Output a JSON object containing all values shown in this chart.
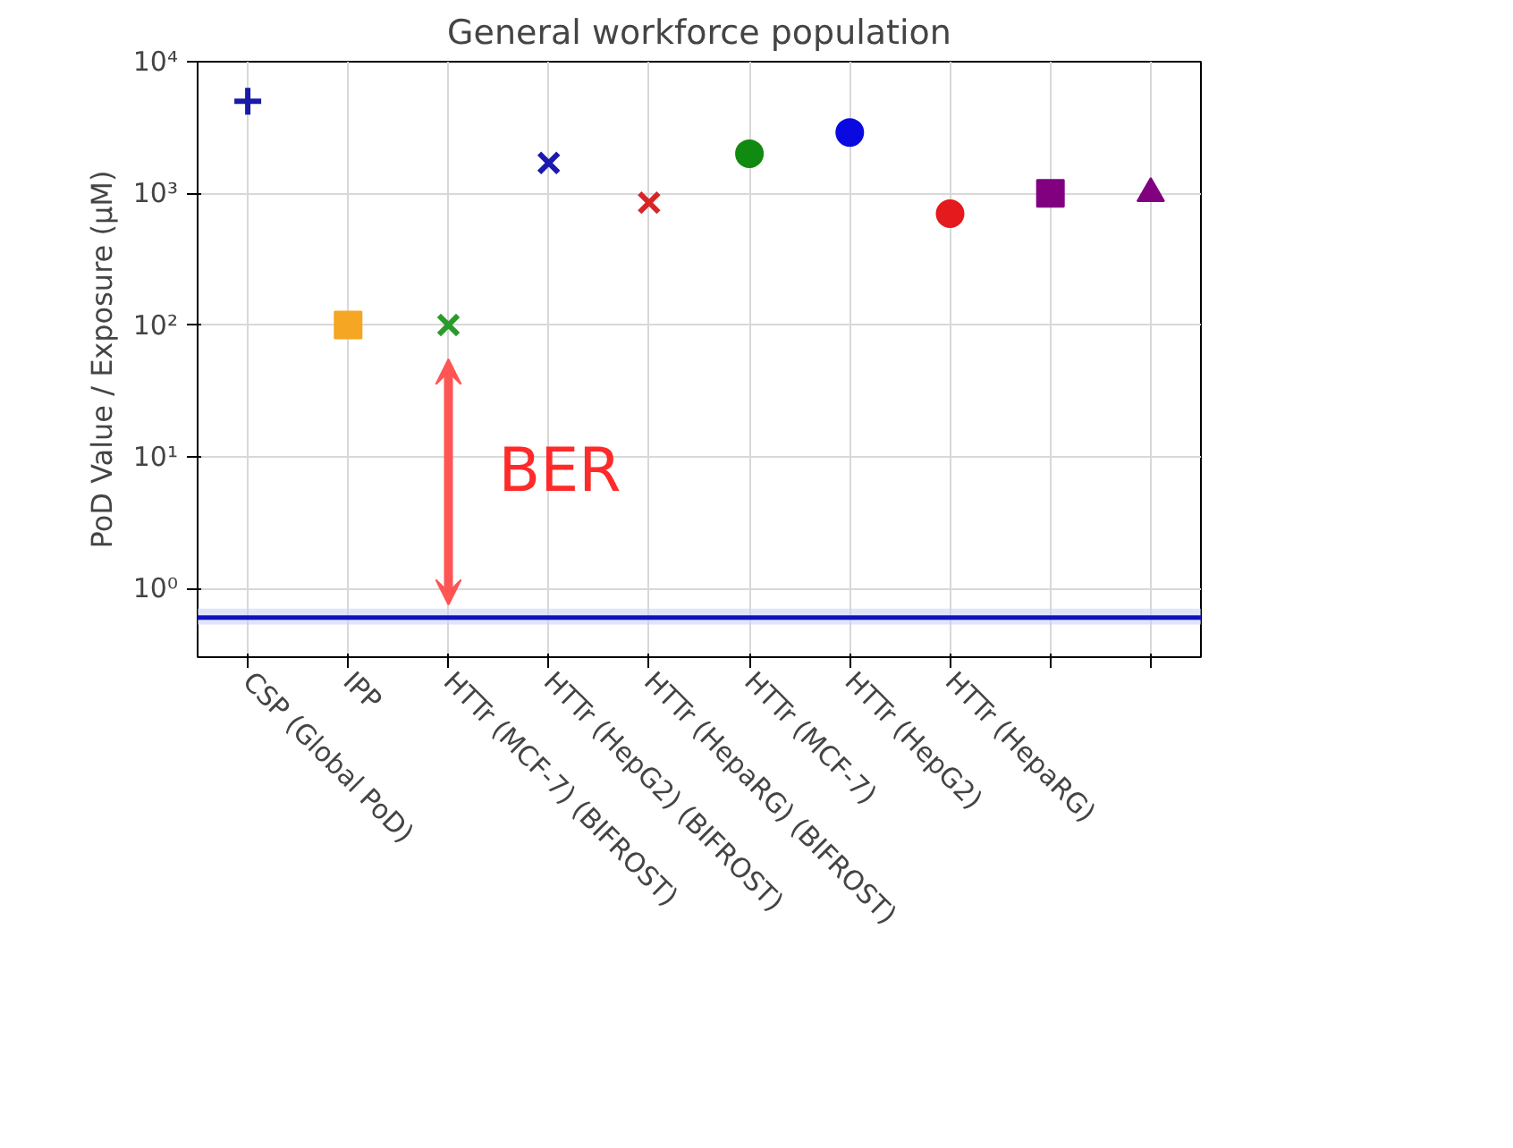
{
  "chart_data": {
    "type": "scatter",
    "title": "General workforce population",
    "ylabel": "PoD Value / Exposure (µM)",
    "categories": [
      "CSP (Global PoD)",
      "IPP",
      "HTTr (MCF-7) (BIFROST)",
      "HTTr (HepG2) (BIFROST)",
      "HTTr (HepaRG) (BIFROST)",
      "HTTr (MCF-7)",
      "HTTr (HepG2)",
      "HTTr (HepaRG)",
      null,
      null
    ],
    "log": true,
    "ylim": [
      0.3,
      10000
    ],
    "yticks": [
      {
        "value": 1,
        "label": "10⁰"
      },
      {
        "value": 10,
        "label": "10¹"
      },
      {
        "value": 100,
        "label": "10²"
      },
      {
        "value": 1000,
        "label": "10³"
      },
      {
        "value": 10000,
        "label": "10⁴"
      }
    ],
    "grid": true,
    "series": [
      {
        "color": "#1a1aa8",
        "marker": "cross",
        "values": [
          5000,
          null,
          null,
          null,
          null,
          null,
          null,
          null,
          null,
          null
        ]
      },
      {
        "color": "#f5a623",
        "marker": "square",
        "values": [
          null,
          100,
          null,
          null,
          null,
          null,
          null,
          null,
          null,
          null
        ]
      },
      {
        "color": "#2a9a2a",
        "marker": "x",
        "values": [
          null,
          null,
          100,
          null,
          null,
          null,
          null,
          null,
          null,
          null
        ]
      },
      {
        "color": "#1a1ab0",
        "marker": "x",
        "values": [
          null,
          null,
          null,
          1700,
          null,
          null,
          null,
          null,
          null,
          null
        ]
      },
      {
        "color": "#d62728",
        "marker": "x",
        "values": [
          null,
          null,
          null,
          null,
          850,
          null,
          null,
          null,
          null,
          null
        ]
      },
      {
        "color": "#108a10",
        "marker": "circle",
        "values": [
          null,
          null,
          null,
          null,
          null,
          2000,
          null,
          null,
          null,
          null
        ]
      },
      {
        "color": "#0a0ae0",
        "marker": "circle",
        "values": [
          null,
          null,
          null,
          null,
          null,
          null,
          2900,
          null,
          null,
          null
        ]
      },
      {
        "color": "#e41a1c",
        "marker": "circle",
        "values": [
          null,
          null,
          null,
          null,
          null,
          null,
          null,
          700,
          null,
          null
        ]
      },
      {
        "color": "#800080",
        "marker": "square",
        "values": [
          null,
          null,
          null,
          null,
          null,
          null,
          null,
          null,
          1000,
          null
        ]
      },
      {
        "color": "#800080",
        "marker": "triangle",
        "values": [
          null,
          null,
          null,
          null,
          null,
          null,
          null,
          null,
          null,
          1000
        ]
      }
    ],
    "ref_lines": [
      {
        "axis": "y",
        "value": 0.6,
        "color": "#1010c0"
      }
    ],
    "bands": [
      {
        "axis": "y",
        "from": 0.53,
        "to": 0.7,
        "color": "#c8d4f8"
      }
    ],
    "annotations": [
      "BER"
    ]
  }
}
